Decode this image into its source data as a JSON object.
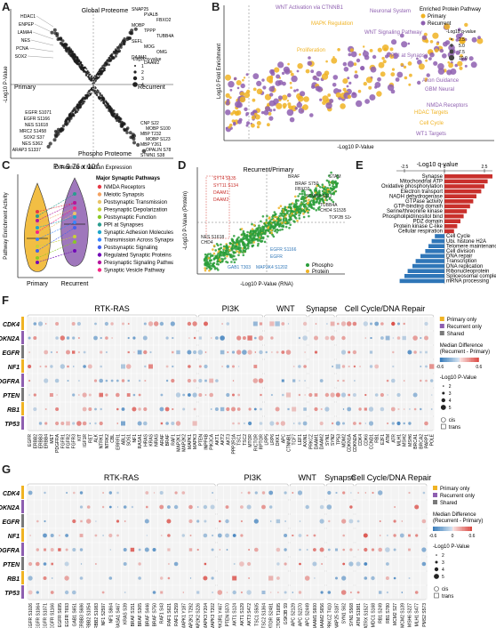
{
  "colors": {
    "primary": "#f0b323",
    "recurrent": "#8e5fb0",
    "shared": "#7a7a7a",
    "phospho": "#2a9d3a",
    "protein": "#f0b323",
    "black": "#222222",
    "red": "#c9302c",
    "blue": "#2f76b8",
    "dashred": "#d9534f"
  },
  "panelA": {
    "label": "A",
    "title_global": "Global\nProteome",
    "title_phospho": "Phospho\nProteome",
    "region_primary": "Primary",
    "region_recurrent": "Recurrent",
    "xlabel": "Difference of Median Expression",
    "ylabel": "-Log10 P-Value",
    "legend_title": "-Log10 q-value",
    "legend_vals": [
      "1",
      "2",
      "3",
      "4"
    ],
    "genes_global_left": [
      "HDAC1",
      "ENPEP",
      "LAMA4",
      "NES",
      "PCNA",
      "SOX2"
    ],
    "genes_global_right": [
      "SNAP25",
      "PVALB",
      "FBXO2",
      "MOBP",
      "TPPP",
      "TUBB4A",
      "SEFL",
      "MOG",
      "OMG",
      "DAAM1",
      "DAAM2"
    ],
    "genes_phospho_left": [
      "EGFR S1071",
      "EGFR S1166",
      "NES S1618",
      "MRC2 S1458",
      "SOX2 S37",
      "NES S362",
      "ARAP3 S1337"
    ],
    "genes_phospho_right": [
      "CNP S22",
      "MOBP S100",
      "MBP T232",
      "MOBP S123",
      "MBP Y261",
      "OPALIN S78",
      "STMN1 S38"
    ]
  },
  "panelB": {
    "label": "B",
    "legend_title": "Enriched Protein Pathway",
    "legend_primary": "Primary",
    "legend_recurrent": "Recurrent",
    "qtitle": "-Log10 q-value",
    "qvals": [
      "2.5",
      "5.0",
      "7.5",
      "10.0"
    ],
    "xlabel": "-Log10 P-Value",
    "ylabel": "Log10 Fold Enrichment",
    "terms": [
      "WNT Activation via CTNNB1",
      "Neuronal System",
      "MAPK Regulation",
      "WNT Signaling Pathway",
      "Proliferation",
      "PPI at Synapse",
      "Axon Guidance",
      "GBM Neural",
      "NMDA Receptors",
      "HDAC Targets",
      "Cell Cycle",
      "WT1 Targets"
    ]
  },
  "panelC": {
    "label": "C",
    "pvalue": "P = 9.76 x 10",
    "pexp": "-4",
    "ylabel": "Pathway Enrichment Activity",
    "groups": [
      "Primary",
      "Recurrent"
    ],
    "legend_title": "Major Synaptic Pathways",
    "pathways": [
      {
        "name": "NMDA Receptors",
        "color": "#e63946"
      },
      {
        "name": "Meiotic Synapsis",
        "color": "#f4a261"
      },
      {
        "name": "Postsynaptic Transmission",
        "color": "#e9c46a"
      },
      {
        "name": "Presynaptic Depolarization",
        "color": "#c7d13a"
      },
      {
        "name": "Postsynaptic Function",
        "color": "#8ac926"
      },
      {
        "name": "PPI at Synapses",
        "color": "#2a9d8f"
      },
      {
        "name": "Synaptic Adhesion Molecules",
        "color": "#1fa6c9"
      },
      {
        "name": "Transmission Across Synapses",
        "color": "#3a86ff"
      },
      {
        "name": "Postsynaptic Signaling",
        "color": "#4361ee"
      },
      {
        "name": "Regulated Synaptic Proteins",
        "color": "#7209b7"
      },
      {
        "name": "Presynaptic Signaling Pathways",
        "color": "#b5179e"
      },
      {
        "name": "Synaptic Vesicle Pathway",
        "color": "#f72585"
      }
    ]
  },
  "panelD": {
    "label": "D",
    "title": "Recurrent/Primary",
    "ylabel": "-Log10 P-Value (Protein)",
    "xlabel": "-Log10 P-Value (RNA)",
    "legend_phospho": "Phospho",
    "legend_protein": "Protein",
    "red_labels": [
      "SYT4 S135",
      "SYT11 S134",
      "DAAM1",
      "DAAM2"
    ],
    "black_labels": [
      "BRAF",
      "BRAF S750",
      "FBXO2",
      "STAM",
      "STMN4 S117",
      "TUBB4A",
      "CHD4 S1535",
      "TOP2B S1408",
      "NES S1618",
      "CHD4"
    ],
    "blue_labels": [
      "EGFR S1166",
      "EGFR",
      "GAB1 T303",
      "MAP3K4 S1202"
    ]
  },
  "panelE": {
    "label": "E",
    "axis_title": "-Log10 q-value",
    "ticks": [
      "-2.5",
      "0",
      "2.5"
    ],
    "bars": [
      {
        "term": "Synapse",
        "value": 3.0
      },
      {
        "term": "Mitochondrial ATP",
        "value": 2.7
      },
      {
        "term": "Oxidative phosphorylation",
        "value": 2.5
      },
      {
        "term": "Electron transport",
        "value": 2.3
      },
      {
        "term": "NADH dehydrogenase",
        "value": 2.0
      },
      {
        "term": "GTPase activity",
        "value": 1.8
      },
      {
        "term": "GTP-binding domain",
        "value": 1.6
      },
      {
        "term": "Serine/threonine kinase",
        "value": 1.4
      },
      {
        "term": "Phospholipid/inositol bind",
        "value": 1.2
      },
      {
        "term": "PDZ domain",
        "value": 1.0
      },
      {
        "term": "Protein kinase C-like",
        "value": 0.8
      },
      {
        "term": "Cellular respiration",
        "value": 0.6
      },
      {
        "term": "Cell Cycle",
        "value": -0.6
      },
      {
        "term": "Ubi. histone H2A",
        "value": -0.8
      },
      {
        "term": "Telomere maintenance",
        "value": -1.0
      },
      {
        "term": "Cell division",
        "value": -1.2
      },
      {
        "term": "DNA repair",
        "value": -1.5
      },
      {
        "term": "Transcription",
        "value": -1.8
      },
      {
        "term": "DNA replication",
        "value": -2.0
      },
      {
        "term": "Ribonucleoprotein",
        "value": -2.3
      },
      {
        "term": "Spliceosomal complex",
        "value": -2.5
      },
      {
        "term": "mRNA processing",
        "value": -2.8
      }
    ]
  },
  "panelF": {
    "label": "F",
    "groups": [
      "RTK-RAS",
      "PI3K",
      "WNT",
      "Synapse",
      "Cell Cycle/DNA Repair"
    ],
    "rows": [
      "CDK4",
      "CDKN2A",
      "EGFR",
      "NF1",
      "PDGFRA",
      "PTEN",
      "RB1",
      "TP53"
    ],
    "cols": [
      "EGFR",
      "ERBB2",
      "ERBB3",
      "ERBB4",
      "MET",
      "PDGFRA",
      "FGFR1",
      "FGFR2",
      "FGFR3",
      "KIT",
      "IGF1R",
      "RET",
      "ALK",
      "NTRK1",
      "NTRK2",
      "CBL",
      "ERRFI1",
      "ABL1",
      "SOS1",
      "NF1",
      "RASA1",
      "HRAS",
      "KRAS",
      "NRAS",
      "ARAF",
      "BRAF",
      "RAF1",
      "MAP2K1",
      "MAP2K2",
      "MAPK1",
      "MAPK3",
      "PTEN",
      "INPP4B",
      "PIK3CA",
      "AKT1",
      "AKT2",
      "AKT3",
      "PPP2R1A",
      "TSC1",
      "TSC2",
      "MTOR",
      "RICTOR",
      "RPTOR",
      "LRP5",
      "LRP6",
      "DKK1",
      "APC",
      "CTNNB1",
      "TCF7",
      "LEF1",
      "AXIN1",
      "PRKCZ",
      "DAAM1",
      "DAAM2",
      "SYN1",
      "SYN2",
      "TP53",
      "MDM2",
      "CDKN1A",
      "CDKN2A",
      "CDK4",
      "CDK6",
      "CCND1",
      "RB1",
      "E2F1",
      "ATM",
      "ATR",
      "MLH1",
      "MSH2",
      "MSH6",
      "BRCA1",
      "BRCA2",
      "PARP1",
      "POLE"
    ],
    "legend_primary": "Primary only",
    "legend_recurrent": "Recurrent only",
    "legend_shared": "Shared",
    "median_title": "Median Difference\n(Recurrent - Primary)",
    "median_ticks": [
      "-0.6",
      "0",
      "0.6"
    ],
    "size_title": "-Log10 P-Value",
    "size_vals": [
      "2",
      "3",
      "4",
      "5"
    ],
    "cis": "cis",
    "trans": "trans"
  },
  "panelG": {
    "label": "G",
    "groups": [
      "RTK-RAS",
      "PI3K",
      "WNT",
      "Synapse",
      "Cell Cycle/DNA Repair"
    ],
    "rows": [
      "CDK4",
      "CDKN2A",
      "EGFR",
      "NF1",
      "PDGFRA",
      "PTEN",
      "RB1",
      "TP53"
    ],
    "cols": [
      "EGFR S1026",
      "EGFR S1064",
      "EGFR S1071",
      "EGFR S1166",
      "EGFR S695",
      "EGFR T693",
      "GAB1 S651",
      "ERBB3 S686",
      "ERBB2 S1054",
      "ERBB2 S1083",
      "NF1 S2597",
      "NF1 S864",
      "RASA1 S467",
      "KRAS S39",
      "BRAF S151",
      "BRAF S365",
      "BRAF S446",
      "BRAF S750",
      "RAF1 S43",
      "RAF1 S621",
      "RAF1 S259",
      "MAPK1 Y187",
      "MAP2K1 T292",
      "MAP2K2 S226",
      "MAPK3 Y204",
      "MAPK3 T202",
      "PIK3R1 Y467",
      "PTEN S370",
      "AKT1 S124",
      "AKT1 S129",
      "AKT3 S472",
      "TSC1 S505",
      "TSC2 S1364",
      "MTOR S2481",
      "RICTOR T1695",
      "GSK3B S9",
      "APC S2129",
      "APC S2270",
      "APC S2449",
      "DAAM1 S600",
      "DAAM2 S656",
      "PRKCZ T410",
      "SNAP25 S187",
      "SYN1 S62",
      "SYN1 S568",
      "ATM S1981",
      "ATRX S1527",
      "MDC1 S168",
      "RB1 S249",
      "RB1 S780",
      "MCM2 S27",
      "MCM2 S139",
      "MSH6 S227",
      "MLH1 S477",
      "PMS2 S573"
    ],
    "legend_primary": "Primary only",
    "legend_recurrent": "Recurrent only",
    "legend_shared": "Shared",
    "median_title": "Median Difference\n(Recurrent - Primary)",
    "median_ticks": [
      "-0.6",
      "0",
      "0.6"
    ],
    "size_title": "-Log10 P-Value",
    "size_vals": [
      "2",
      "3",
      "4",
      "5"
    ],
    "cis": "cis",
    "trans": "trans"
  }
}
